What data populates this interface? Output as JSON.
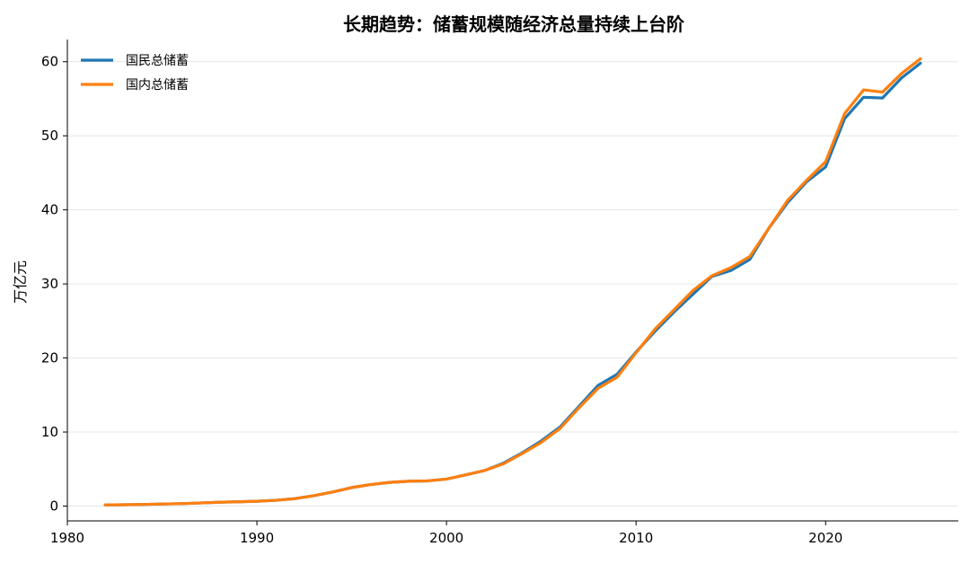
{
  "chart_data": {
    "type": "line",
    "title": "长期趋势：储蓄规模随经济总量持续上台阶",
    "ylabel": "万亿元",
    "xlabel": "",
    "xlim": [
      1980,
      2027
    ],
    "ylim": [
      -2,
      63
    ],
    "xticks": [
      1980,
      1990,
      2000,
      2010,
      2020
    ],
    "yticks": [
      0,
      10,
      20,
      30,
      40,
      50,
      60
    ],
    "grid": "horizontal",
    "legend_position": "top-left",
    "x": [
      1982,
      1983,
      1984,
      1985,
      1986,
      1987,
      1988,
      1989,
      1990,
      1991,
      1992,
      1993,
      1994,
      1995,
      1996,
      1997,
      1998,
      1999,
      2000,
      2001,
      2002,
      2003,
      2004,
      2005,
      2006,
      2007,
      2008,
      2009,
      2010,
      2011,
      2012,
      2013,
      2014,
      2015,
      2016,
      2017,
      2018,
      2019,
      2020,
      2021,
      2022,
      2023,
      2024,
      2025
    ],
    "series": [
      {
        "name": "国民总储蓄",
        "color": "#1f77b4",
        "values": [
          0.15,
          0.18,
          0.22,
          0.28,
          0.33,
          0.42,
          0.52,
          0.58,
          0.65,
          0.78,
          1.0,
          1.4,
          1.9,
          2.5,
          2.9,
          3.2,
          3.35,
          3.4,
          3.65,
          4.2,
          4.8,
          5.8,
          7.2,
          8.8,
          10.7,
          13.5,
          16.3,
          17.8,
          20.8,
          23.6,
          26.2,
          28.6,
          31.0,
          31.8,
          33.3,
          37.5,
          41.0,
          43.8,
          45.8,
          52.3,
          55.2,
          55.1,
          57.8,
          59.8
        ]
      },
      {
        "name": "国内总储蓄",
        "color": "#ff7f0e",
        "values": [
          0.15,
          0.18,
          0.22,
          0.28,
          0.33,
          0.42,
          0.52,
          0.58,
          0.65,
          0.78,
          1.0,
          1.4,
          1.9,
          2.5,
          2.9,
          3.2,
          3.35,
          3.4,
          3.65,
          4.2,
          4.8,
          5.7,
          7.1,
          8.6,
          10.5,
          13.3,
          15.9,
          17.4,
          20.7,
          23.9,
          26.5,
          29.1,
          31.1,
          32.2,
          33.7,
          37.5,
          41.3,
          44.0,
          46.5,
          53.0,
          56.2,
          55.9,
          58.4,
          60.4
        ]
      }
    ]
  }
}
